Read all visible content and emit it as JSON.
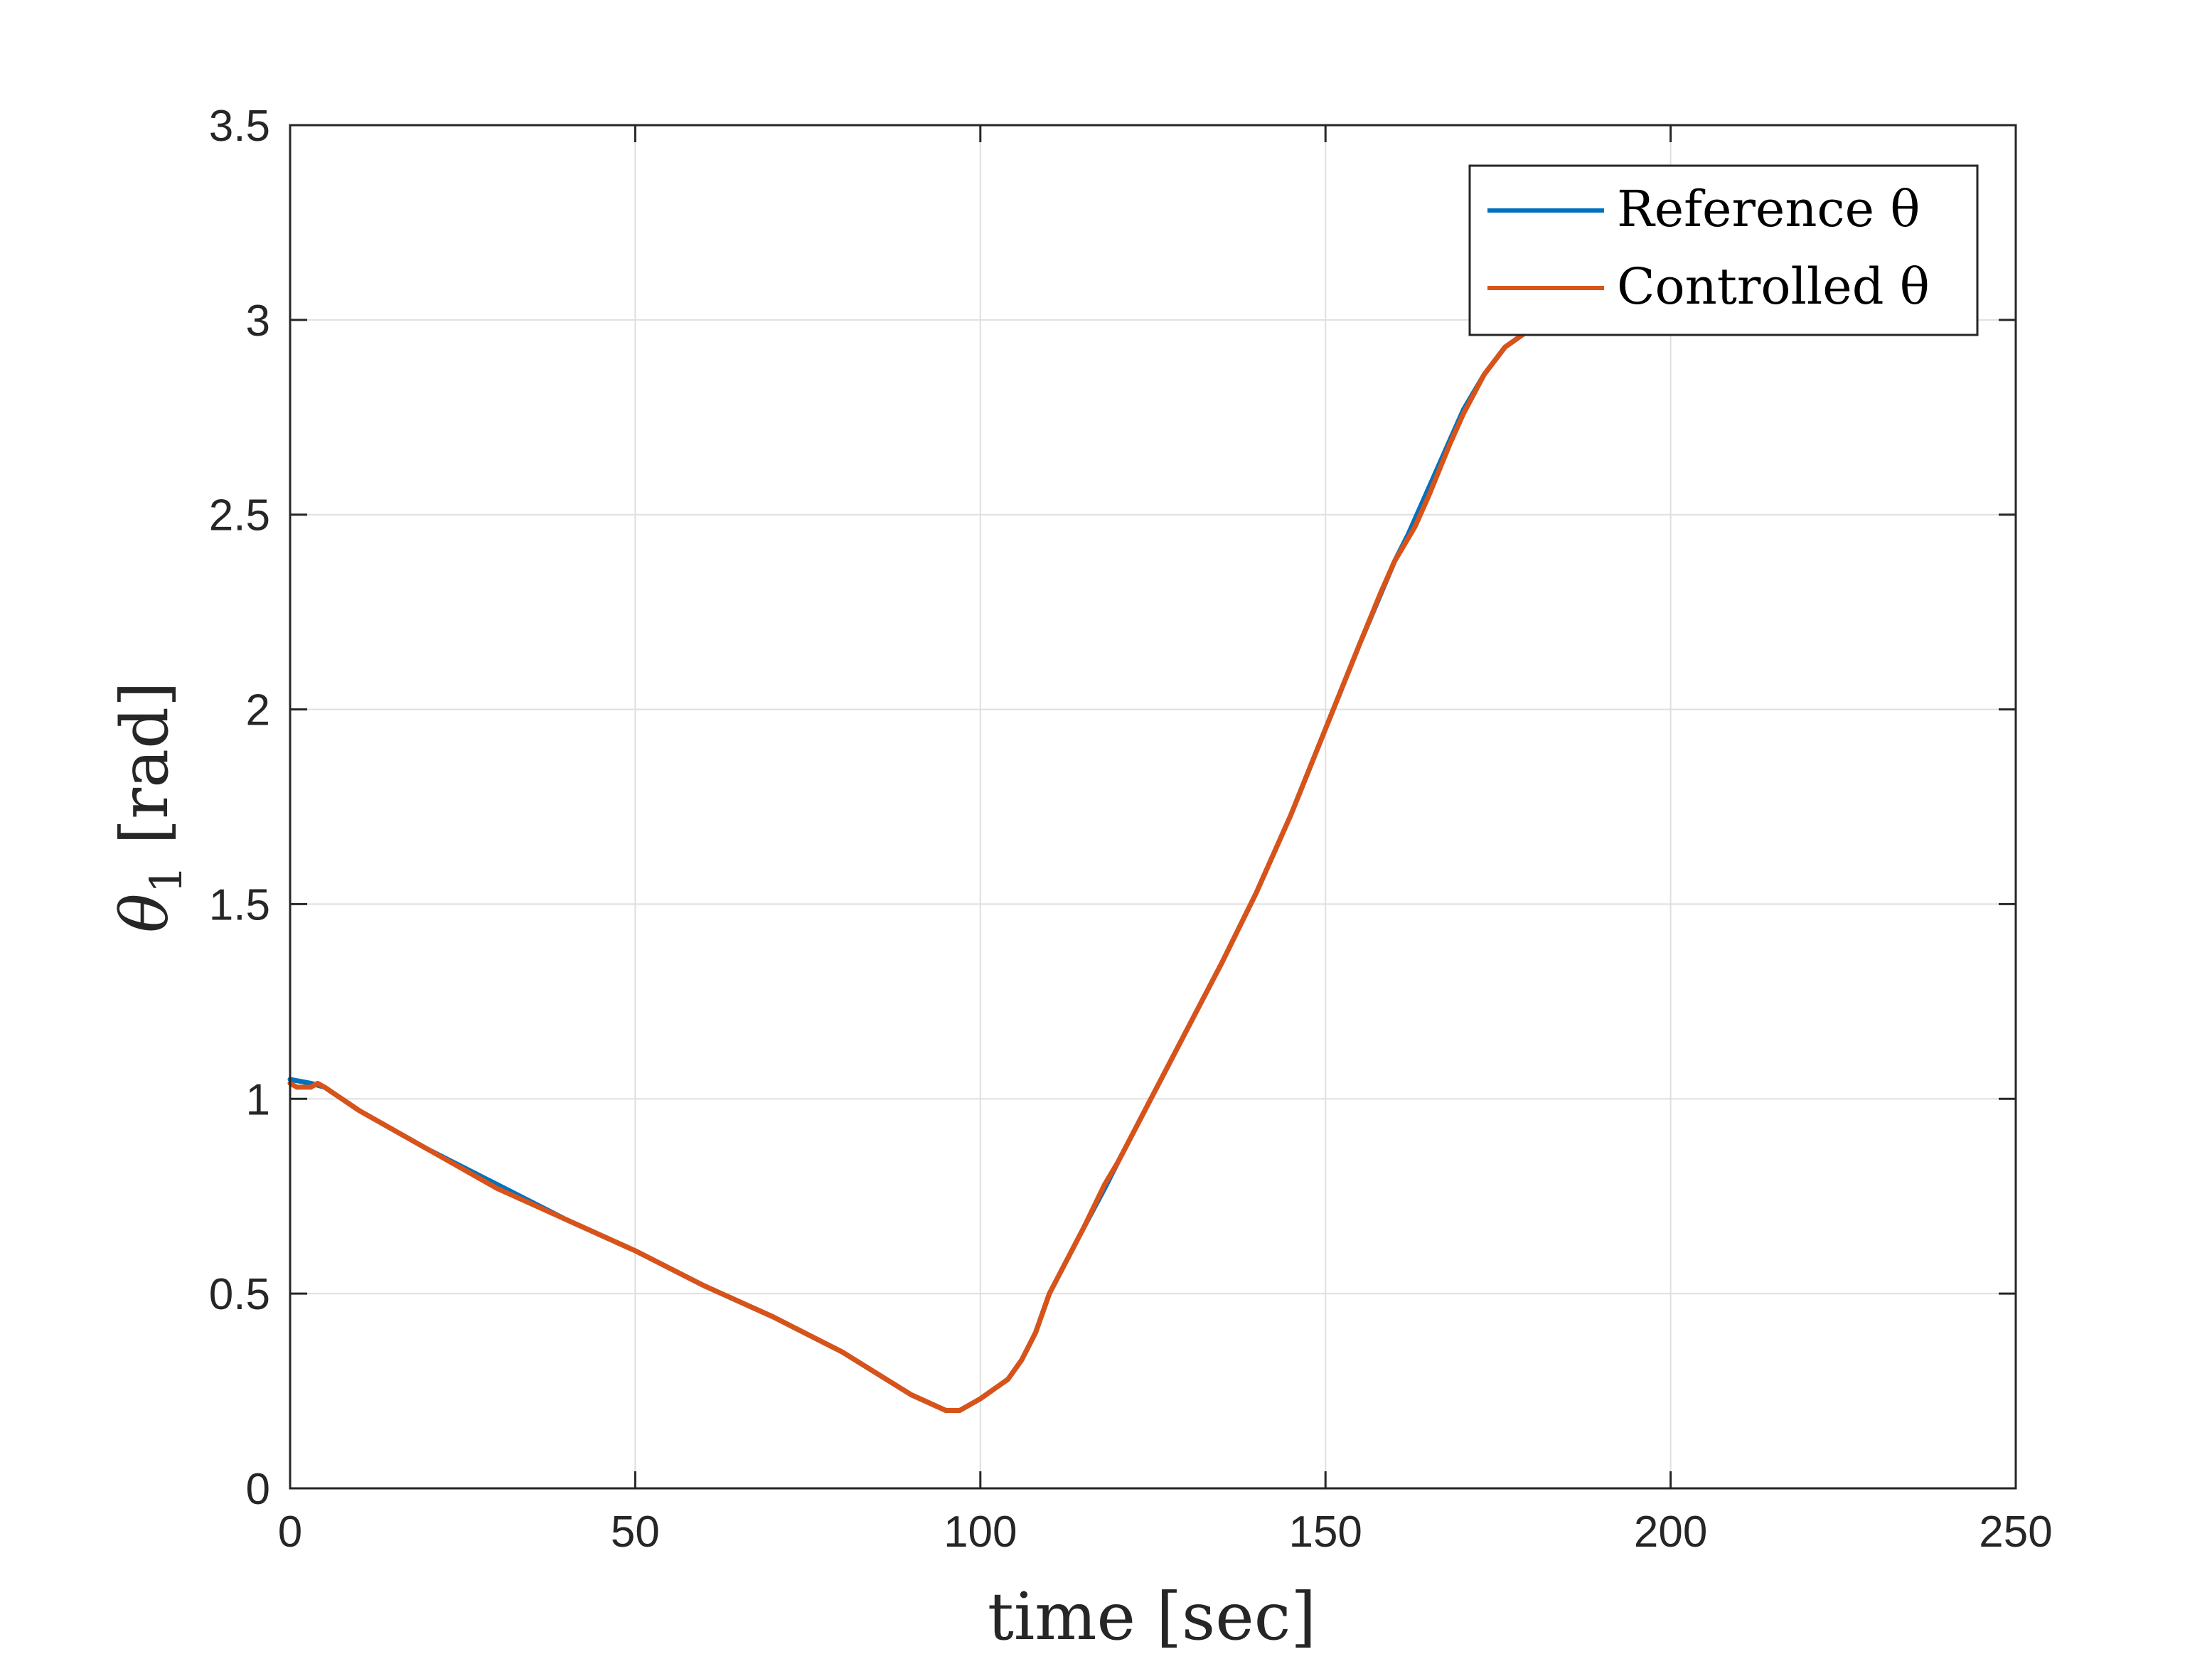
{
  "chart_data": {
    "type": "line",
    "xlabel": "time [sec]",
    "ylabel_symbol": "θ",
    "ylabel_subscript": "1",
    "ylabel_unit": " [rad]",
    "xlim": [
      0,
      250
    ],
    "ylim": [
      0,
      3.5
    ],
    "xticks": [
      0,
      50,
      100,
      150,
      200,
      250
    ],
    "xtick_labels": [
      "0",
      "50",
      "100",
      "150",
      "200",
      "250"
    ],
    "yticks": [
      0,
      0.5,
      1,
      1.5,
      2,
      2.5,
      3,
      3.5
    ],
    "ytick_labels": [
      "0",
      "0.5",
      "1",
      "1.5",
      "2",
      "2.5",
      "3",
      "3.5"
    ],
    "grid": true,
    "legend_position": "top-right",
    "series": [
      {
        "name": "Reference θ",
        "color": "#0072BD",
        "x": [
          0,
          3,
          5,
          10,
          20,
          30,
          40,
          50,
          60,
          70,
          80,
          90,
          95,
          97,
          100,
          104,
          106,
          108,
          110,
          115,
          118,
          120,
          125,
          130,
          135,
          140,
          145,
          150,
          155,
          160,
          162,
          165,
          168,
          170,
          173,
          176,
          180,
          184,
          188
        ],
        "y": [
          1.05,
          1.04,
          1.03,
          0.97,
          0.87,
          0.78,
          0.69,
          0.61,
          0.52,
          0.44,
          0.35,
          0.24,
          0.2,
          0.2,
          0.23,
          0.28,
          0.33,
          0.4,
          0.5,
          0.67,
          0.77,
          0.84,
          1.01,
          1.18,
          1.35,
          1.53,
          1.73,
          1.95,
          2.17,
          2.38,
          2.45,
          2.57,
          2.69,
          2.77,
          2.86,
          2.93,
          2.98,
          3.0,
          3.0
        ]
      },
      {
        "name": "Controlled θ",
        "color": "#D95319",
        "x": [
          0,
          1,
          2,
          3,
          4,
          5,
          10,
          20,
          30,
          40,
          50,
          60,
          70,
          80,
          90,
          95,
          97,
          100,
          104,
          106,
          108,
          110,
          115,
          118,
          120,
          125,
          130,
          135,
          140,
          145,
          150,
          155,
          158,
          160,
          161,
          162,
          163,
          165,
          168,
          170,
          173,
          176,
          180,
          184,
          188
        ],
        "y": [
          1.04,
          1.03,
          1.03,
          1.03,
          1.04,
          1.03,
          0.97,
          0.87,
          0.77,
          0.69,
          0.61,
          0.52,
          0.44,
          0.35,
          0.24,
          0.2,
          0.2,
          0.23,
          0.28,
          0.33,
          0.4,
          0.5,
          0.67,
          0.78,
          0.84,
          1.01,
          1.18,
          1.35,
          1.53,
          1.73,
          1.95,
          2.17,
          2.3,
          2.38,
          2.41,
          2.44,
          2.47,
          2.55,
          2.68,
          2.76,
          2.86,
          2.93,
          2.98,
          3.0,
          3.0
        ]
      }
    ]
  }
}
